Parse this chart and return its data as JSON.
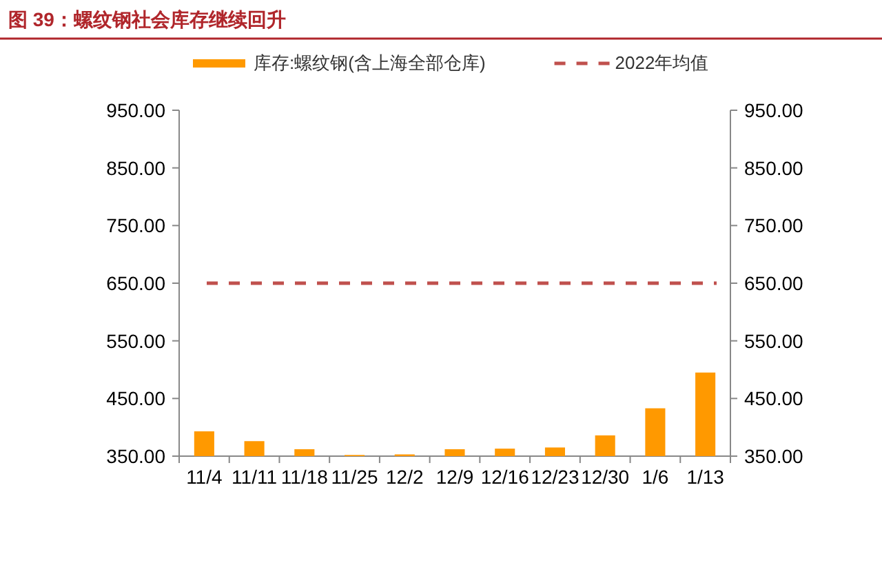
{
  "chart_data": {
    "type": "bar",
    "title": "图 39：螺纹钢社会库存继续回升",
    "categories": [
      "11/4",
      "11/11",
      "11/18",
      "11/25",
      "12/2",
      "12/9",
      "12/16",
      "12/23",
      "12/30",
      "1/6",
      "1/13"
    ],
    "series": [
      {
        "name": "库存:螺纹钢(含上海全部仓库)",
        "color": "#ff9900",
        "values": [
          393,
          376,
          362,
          352,
          353,
          362,
          363,
          365,
          386,
          433,
          495
        ]
      }
    ],
    "ref_lines": [
      {
        "axis": "y",
        "value": 650,
        "label": "2022年均值",
        "color": "#c0504d",
        "line_style": "dashed"
      }
    ],
    "ylim": [
      350,
      950
    ],
    "yticks": [
      {
        "value": 350,
        "label": "350.00"
      },
      {
        "value": 450,
        "label": "450.00"
      },
      {
        "value": 550,
        "label": "550.00"
      },
      {
        "value": 650,
        "label": "650.00"
      },
      {
        "value": 750,
        "label": "750.00"
      },
      {
        "value": 850,
        "label": "850.00"
      },
      {
        "value": 950,
        "label": "950.00"
      }
    ],
    "y2lim": [
      350,
      950
    ],
    "y2ticks": [
      {
        "value": 350,
        "label": "350.00"
      },
      {
        "value": 450,
        "label": "450.00"
      },
      {
        "value": 550,
        "label": "550.00"
      },
      {
        "value": 650,
        "label": "650.00"
      },
      {
        "value": 750,
        "label": "750.00"
      },
      {
        "value": 850,
        "label": "850.00"
      },
      {
        "value": 950,
        "label": "950.00"
      }
    ],
    "legend": "top",
    "grid": false
  }
}
